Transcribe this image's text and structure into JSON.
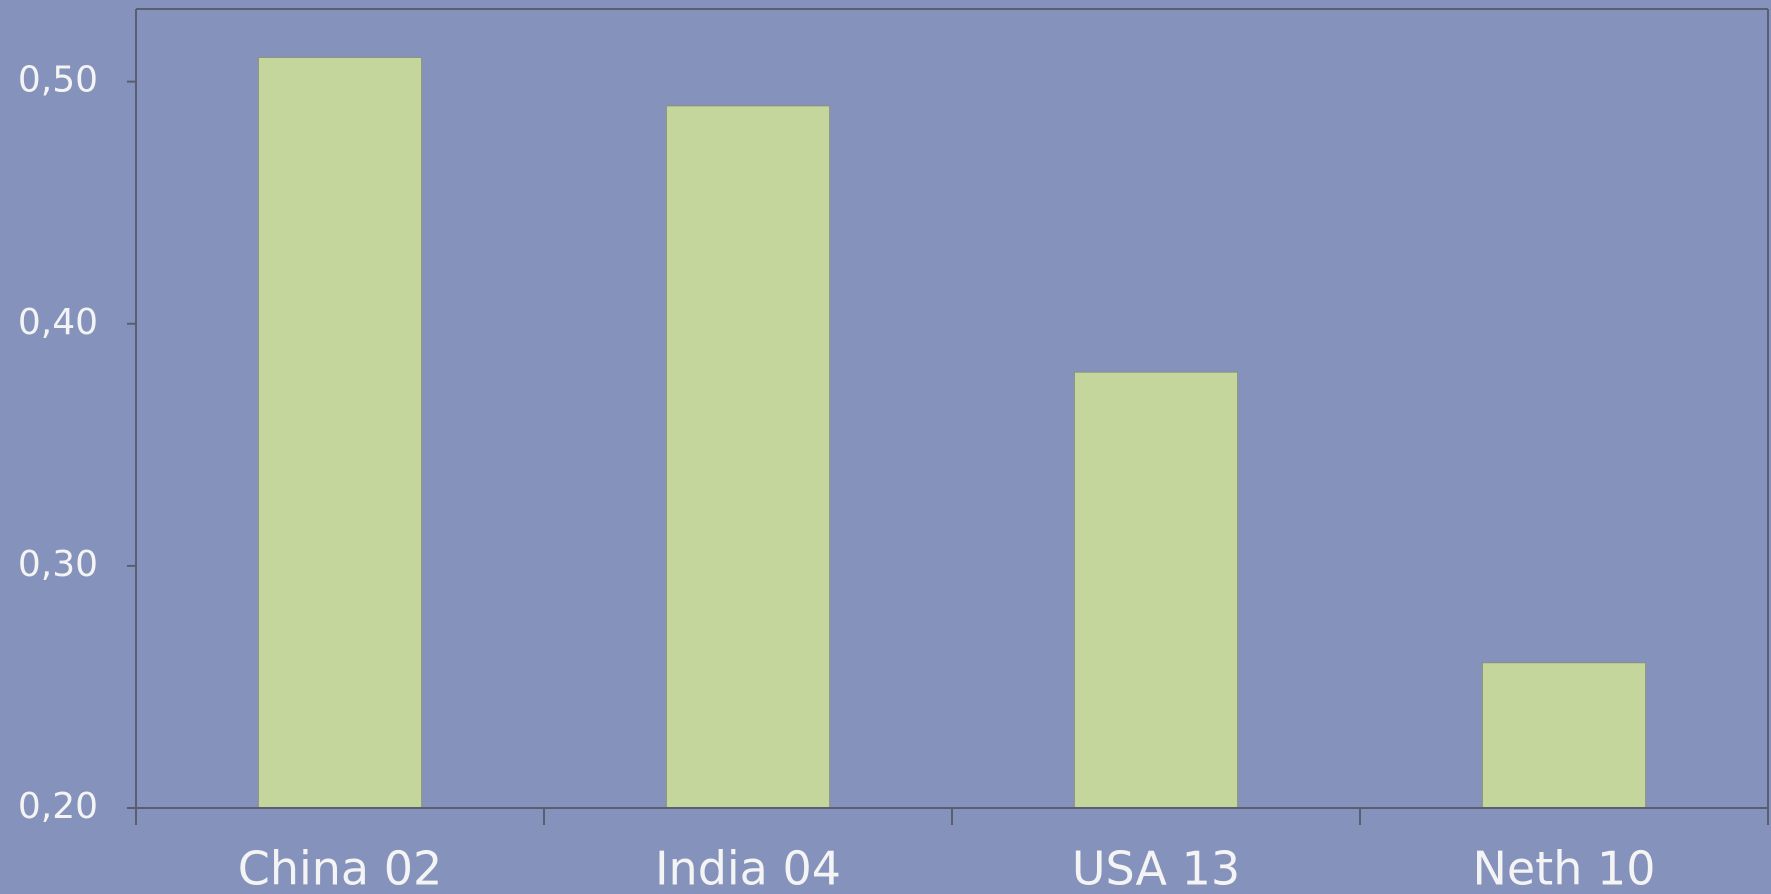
{
  "chart_data": {
    "type": "bar",
    "categories": [
      "China 02",
      "India 04",
      "USA 13",
      "Neth 10"
    ],
    "values": [
      0.51,
      0.49,
      0.38,
      0.26
    ],
    "color": "#c4d69c",
    "ylim": [
      0.2,
      0.53
    ],
    "yticks": [
      {
        "value": 0.2,
        "label": "0,20"
      },
      {
        "value": 0.3,
        "label": "0,30"
      },
      {
        "value": 0.4,
        "label": "0,40"
      },
      {
        "value": 0.5,
        "label": "0,50"
      }
    ],
    "grid": false
  }
}
